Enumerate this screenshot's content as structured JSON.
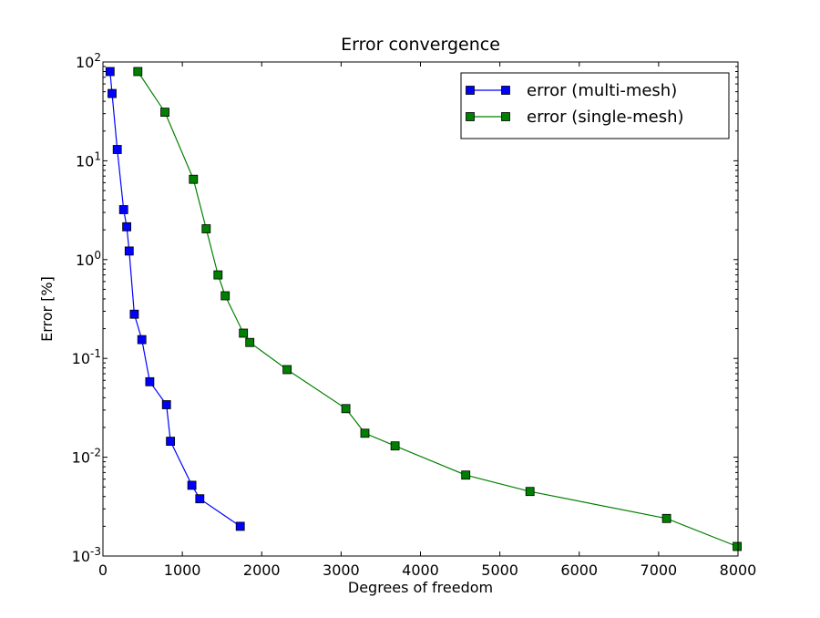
{
  "chart_data": {
    "type": "line",
    "title": "Error convergence",
    "xlabel": "Degrees of freedom",
    "ylabel": "Error [%]",
    "xlim": [
      0,
      8000
    ],
    "ylim": [
      0.001,
      100
    ],
    "yscale": "log",
    "grid": false,
    "legend_position": "top-right",
    "x_ticks": [
      0,
      1000,
      2000,
      3000,
      4000,
      5000,
      6000,
      7000,
      8000
    ],
    "x_tick_labels": [
      "0",
      "1000",
      "2000",
      "3000",
      "4000",
      "5000",
      "6000",
      "7000",
      "8000"
    ],
    "y_ticks": [
      {
        "value": 100,
        "mantissa": "10",
        "exponent": "2"
      },
      {
        "value": 10,
        "mantissa": "10",
        "exponent": "1"
      },
      {
        "value": 1,
        "mantissa": "10",
        "exponent": "0"
      },
      {
        "value": 0.1,
        "mantissa": "10",
        "exponent": "-1"
      },
      {
        "value": 0.01,
        "mantissa": "10",
        "exponent": "-2"
      },
      {
        "value": 0.001,
        "mantissa": "10",
        "exponent": "-3"
      }
    ],
    "series": [
      {
        "name": "error (multi-mesh)",
        "color": "#0000ff",
        "marker_color": "#0000ff",
        "x": [
          90,
          115,
          180,
          260,
          300,
          330,
          395,
          490,
          590,
          800,
          850,
          1120,
          1220,
          1730
        ],
        "y": [
          80,
          48,
          13,
          3.2,
          2.15,
          1.22,
          0.28,
          0.155,
          0.058,
          0.034,
          0.0145,
          0.0052,
          0.0038,
          0.002
        ]
      },
      {
        "name": "error (single-mesh)",
        "color": "#008000",
        "marker_color": "#008000",
        "x": [
          440,
          780,
          1140,
          1300,
          1450,
          1540,
          1770,
          1850,
          2320,
          3060,
          3300,
          3680,
          4570,
          5380,
          7100,
          7990
        ],
        "y": [
          80,
          31,
          6.5,
          2.05,
          0.7,
          0.43,
          0.18,
          0.145,
          0.077,
          0.031,
          0.0175,
          0.013,
          0.0066,
          0.0045,
          0.0024,
          0.00125
        ]
      }
    ]
  }
}
